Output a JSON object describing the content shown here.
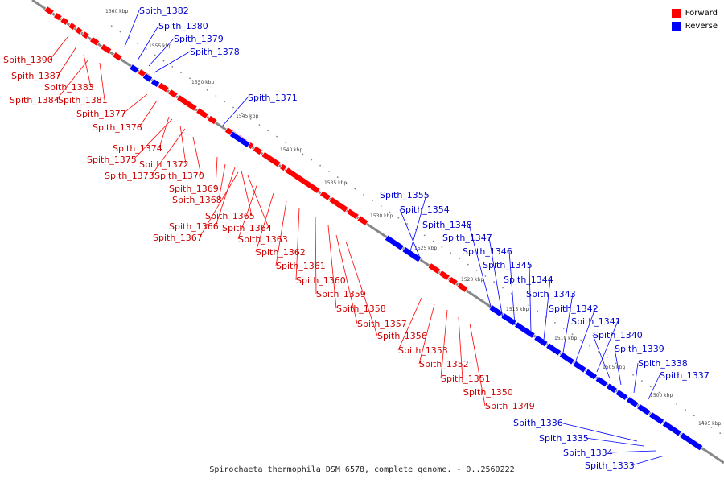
{
  "colors": {
    "forward": "#ff0000",
    "reverse": "#0000ff",
    "forward_text": "#cc0000",
    "reverse_text": "#0000cc",
    "backbone": "#888888"
  },
  "legend": {
    "forward_label": "Forward",
    "reverse_label": "Reverse"
  },
  "caption": "Spirochaeta thermophila DSM 6578, complete genome. - 0..2560222",
  "ruler": [
    "1560 kbp",
    "1555 kbp",
    "1550 kbp",
    "1545 kbp",
    "1540 kbp",
    "1535 kbp",
    "1530 kbp",
    "1525 kbp",
    "1520 kbp",
    "1515 kbp",
    "1510 kbp",
    "1505 kbp",
    "1500 kbp",
    "1495 kbp"
  ],
  "genes": [
    {
      "name": "Spith_1390",
      "strand": "forward"
    },
    {
      "name": "Spith_1387",
      "strand": "forward"
    },
    {
      "name": "Spith_1383",
      "strand": "forward"
    },
    {
      "name": "Spith_1384",
      "strand": "forward"
    },
    {
      "name": "Spith_1381",
      "strand": "forward"
    },
    {
      "name": "Spith_1382",
      "strand": "reverse"
    },
    {
      "name": "Spith_1380",
      "strand": "reverse"
    },
    {
      "name": "Spith_1379",
      "strand": "reverse"
    },
    {
      "name": "Spith_1378",
      "strand": "reverse"
    },
    {
      "name": "Spith_1377",
      "strand": "forward"
    },
    {
      "name": "Spith_1376",
      "strand": "forward"
    },
    {
      "name": "Spith_1371",
      "strand": "reverse"
    },
    {
      "name": "Spith_1374",
      "strand": "forward"
    },
    {
      "name": "Spith_1375",
      "strand": "forward"
    },
    {
      "name": "Spith_1372",
      "strand": "forward"
    },
    {
      "name": "Spith_1373",
      "strand": "forward"
    },
    {
      "name": "Spith_1370",
      "strand": "forward"
    },
    {
      "name": "Spith_1369",
      "strand": "forward"
    },
    {
      "name": "Spith_1368",
      "strand": "forward"
    },
    {
      "name": "Spith_1365",
      "strand": "forward"
    },
    {
      "name": "Spith_1366",
      "strand": "forward"
    },
    {
      "name": "Spith_1364",
      "strand": "forward"
    },
    {
      "name": "Spith_1367",
      "strand": "forward"
    },
    {
      "name": "Spith_1363",
      "strand": "forward"
    },
    {
      "name": "Spith_1362",
      "strand": "forward"
    },
    {
      "name": "Spith_1361",
      "strand": "forward"
    },
    {
      "name": "Spith_1360",
      "strand": "forward"
    },
    {
      "name": "Spith_1359",
      "strand": "forward"
    },
    {
      "name": "Spith_1358",
      "strand": "forward"
    },
    {
      "name": "Spith_1357",
      "strand": "forward"
    },
    {
      "name": "Spith_1356",
      "strand": "forward"
    },
    {
      "name": "Spith_1355",
      "strand": "reverse"
    },
    {
      "name": "Spith_1354",
      "strand": "reverse"
    },
    {
      "name": "Spith_1348",
      "strand": "reverse"
    },
    {
      "name": "Spith_1347",
      "strand": "reverse"
    },
    {
      "name": "Spith_1346",
      "strand": "reverse"
    },
    {
      "name": "Spith_1345",
      "strand": "reverse"
    },
    {
      "name": "Spith_1344",
      "strand": "reverse"
    },
    {
      "name": "Spith_1343",
      "strand": "reverse"
    },
    {
      "name": "Spith_1342",
      "strand": "reverse"
    },
    {
      "name": "Spith_1341",
      "strand": "reverse"
    },
    {
      "name": "Spith_1340",
      "strand": "reverse"
    },
    {
      "name": "Spith_1339",
      "strand": "reverse"
    },
    {
      "name": "Spith_1338",
      "strand": "reverse"
    },
    {
      "name": "Spith_1337",
      "strand": "reverse"
    },
    {
      "name": "Spith_1353",
      "strand": "forward"
    },
    {
      "name": "Spith_1352",
      "strand": "forward"
    },
    {
      "name": "Spith_1351",
      "strand": "forward"
    },
    {
      "name": "Spith_1350",
      "strand": "forward"
    },
    {
      "name": "Spith_1349",
      "strand": "forward"
    },
    {
      "name": "Spith_1336",
      "strand": "reverse"
    },
    {
      "name": "Spith_1335",
      "strand": "reverse"
    },
    {
      "name": "Spith_1334",
      "strand": "reverse"
    },
    {
      "name": "Spith_1333",
      "strand": "reverse"
    }
  ]
}
